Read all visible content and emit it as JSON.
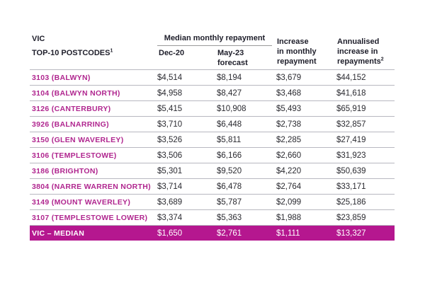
{
  "header": {
    "state": "VIC",
    "subtitle": "TOP-10 POSTCODES",
    "subtitle_sup": "1",
    "group_label": "Median monthly repayment",
    "col_dec": "Dec-20",
    "col_may_1": "May-23",
    "col_may_2": "forecast",
    "col_inc_1": "Increase",
    "col_inc_2": "in monthly",
    "col_inc_3": "repayment",
    "col_ann_1": "Annualised",
    "col_ann_2": "increase in",
    "col_ann_3": "repayments",
    "col_ann_sup": "2"
  },
  "rows": [
    {
      "postcode": "3103 (BALWYN)",
      "dec20": "$4,514",
      "may23": "$8,194",
      "increase": "$3,679",
      "annual": "$44,152"
    },
    {
      "postcode": "3104 (BALWYN NORTH)",
      "dec20": "$4,958",
      "may23": "$8,427",
      "increase": "$3,468",
      "annual": "$41,618"
    },
    {
      "postcode": "3126 (CANTERBURY)",
      "dec20": "$5,415",
      "may23": "$10,908",
      "increase": "$5,493",
      "annual": "$65,919"
    },
    {
      "postcode": "3926 (BALNARRING)",
      "dec20": "$3,710",
      "may23": "$6,448",
      "increase": "$2,738",
      "annual": "$32,857"
    },
    {
      "postcode": "3150 (GLEN WAVERLEY)",
      "dec20": "$3,526",
      "may23": "$5,811",
      "increase": "$2,285",
      "annual": "$27,419"
    },
    {
      "postcode": "3106 (TEMPLESTOWE)",
      "dec20": "$3,506",
      "may23": "$6,166",
      "increase": "$2,660",
      "annual": "$31,923"
    },
    {
      "postcode": "3186 (BRIGHTON)",
      "dec20": "$5,301",
      "may23": "$9,520",
      "increase": "$4,220",
      "annual": "$50,639"
    },
    {
      "postcode": "3804 (NARRE WARREN NORTH)",
      "dec20": "$3,714",
      "may23": "$6,478",
      "increase": "$2,764",
      "annual": "$33,171"
    },
    {
      "postcode": "3149 (MOUNT WAVERLEY)",
      "dec20": "$3,689",
      "may23": "$5,787",
      "increase": "$2,099",
      "annual": "$25,186"
    },
    {
      "postcode": "3107 (TEMPLESTOWE LOWER)",
      "dec20": "$3,374",
      "may23": "$5,363",
      "increase": "$1,988",
      "annual": "$23,859"
    }
  ],
  "median": {
    "postcode": "VIC – MEDIAN",
    "dec20": "$1,650",
    "may23": "$2,761",
    "increase": "$1,111",
    "annual": "$13,327"
  },
  "colors": {
    "accent": "#b5178f",
    "postcode_text": "#b0268f"
  }
}
